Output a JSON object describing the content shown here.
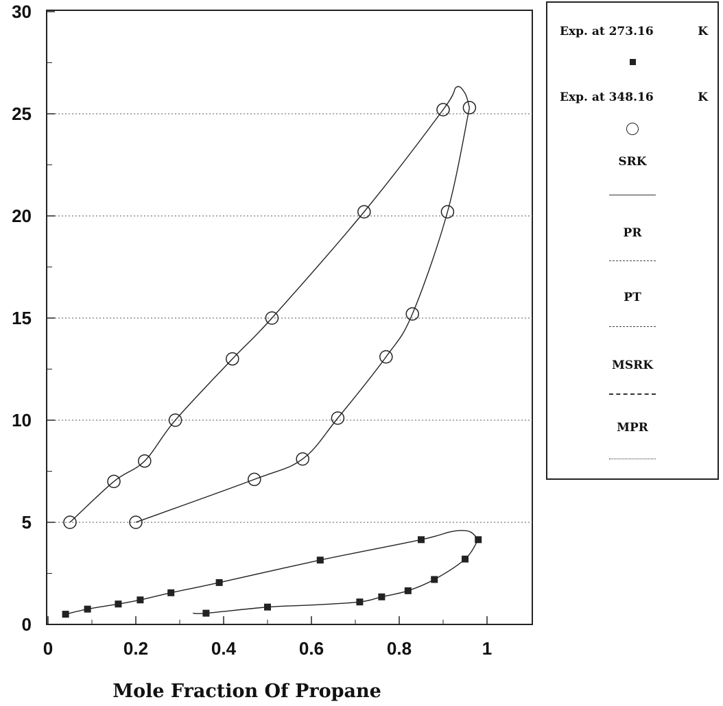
{
  "chart_data": {
    "type": "scatter",
    "xlabel": "Mole Fraction Of Propane",
    "ylabel": "",
    "xlim": [
      0,
      1.1
    ],
    "ylim": [
      0,
      30
    ],
    "x_ticks": [
      "0",
      "0.2",
      "0.4",
      "0.6",
      "0.8",
      "1"
    ],
    "y_ticks": [
      "0",
      "5",
      "10",
      "15",
      "20",
      "25",
      "30"
    ],
    "grid": "horizontal dotted lines at 5, 10, 15, 20, 25",
    "series": [
      {
        "name": "Exp. at 273.16 K",
        "marker": "filled-square",
        "color": "#222222",
        "points": [
          [
            0.04,
            0.5
          ],
          [
            0.09,
            0.75
          ],
          [
            0.16,
            1.0
          ],
          [
            0.21,
            1.2
          ],
          [
            0.28,
            1.55
          ],
          [
            0.39,
            2.05
          ],
          [
            0.62,
            3.15
          ],
          [
            0.85,
            4.15
          ],
          [
            0.98,
            4.15
          ],
          [
            0.36,
            0.55
          ],
          [
            0.5,
            0.85
          ],
          [
            0.71,
            1.1
          ],
          [
            0.76,
            1.35
          ],
          [
            0.82,
            1.65
          ],
          [
            0.88,
            2.2
          ],
          [
            0.95,
            3.2
          ]
        ]
      },
      {
        "name": "Exp. at 348.16 K",
        "marker": "open-circle",
        "color": "#222222",
        "points": [
          [
            0.05,
            5.0
          ],
          [
            0.15,
            7.0
          ],
          [
            0.22,
            8.0
          ],
          [
            0.29,
            10.0
          ],
          [
            0.42,
            13.0
          ],
          [
            0.51,
            15.0
          ],
          [
            0.72,
            20.2
          ],
          [
            0.9,
            25.2
          ],
          [
            0.2,
            5.0
          ],
          [
            0.47,
            7.1
          ],
          [
            0.58,
            8.1
          ],
          [
            0.66,
            10.1
          ],
          [
            0.77,
            13.1
          ],
          [
            0.83,
            15.2
          ],
          [
            0.91,
            20.2
          ],
          [
            0.96,
            25.3
          ]
        ]
      }
    ],
    "model_curves": [
      {
        "name": "SRK",
        "style": "solid"
      },
      {
        "name": "PR",
        "style": "dash-dot"
      },
      {
        "name": "PT",
        "style": "dash-dot-dot"
      },
      {
        "name": "MSRK",
        "style": "dashed"
      },
      {
        "name": "MPR",
        "style": "dotted"
      }
    ],
    "curves": {
      "low_dew": [
        [
          0.04,
          0.5
        ],
        [
          0.09,
          0.75
        ],
        [
          0.16,
          1.0
        ],
        [
          0.21,
          1.2
        ],
        [
          0.28,
          1.55
        ],
        [
          0.39,
          2.05
        ],
        [
          0.62,
          3.15
        ],
        [
          0.85,
          4.15
        ],
        [
          0.92,
          4.55
        ],
        [
          0.96,
          4.55
        ],
        [
          0.98,
          4.15
        ]
      ],
      "low_bubble": [
        [
          0.33,
          0.55
        ],
        [
          0.36,
          0.55
        ],
        [
          0.5,
          0.85
        ],
        [
          0.6,
          0.95
        ],
        [
          0.71,
          1.1
        ],
        [
          0.76,
          1.35
        ],
        [
          0.82,
          1.65
        ],
        [
          0.88,
          2.2
        ],
        [
          0.95,
          3.2
        ],
        [
          0.98,
          4.15
        ]
      ],
      "high_dew": [
        [
          0.05,
          5.0
        ],
        [
          0.15,
          7.0
        ],
        [
          0.22,
          8.0
        ],
        [
          0.29,
          10.0
        ],
        [
          0.42,
          13.0
        ],
        [
          0.51,
          15.0
        ],
        [
          0.72,
          20.2
        ],
        [
          0.9,
          25.2
        ],
        [
          0.93,
          26.3
        ],
        [
          0.95,
          26.0
        ],
        [
          0.96,
          25.3
        ]
      ],
      "high_bubble": [
        [
          0.2,
          5.0
        ],
        [
          0.47,
          7.1
        ],
        [
          0.58,
          8.1
        ],
        [
          0.66,
          10.1
        ],
        [
          0.77,
          13.1
        ],
        [
          0.83,
          15.2
        ],
        [
          0.91,
          20.2
        ],
        [
          0.96,
          25.3
        ]
      ]
    }
  },
  "legend": {
    "exp1_label": "Exp. at 273.16",
    "exp1_unit": "K",
    "exp2_label": "Exp. at 348.16",
    "exp2_unit": "K",
    "srk": "SRK",
    "pr": "PR",
    "pt": "PT",
    "msrk": "MSRK",
    "mpr": "MPR"
  }
}
